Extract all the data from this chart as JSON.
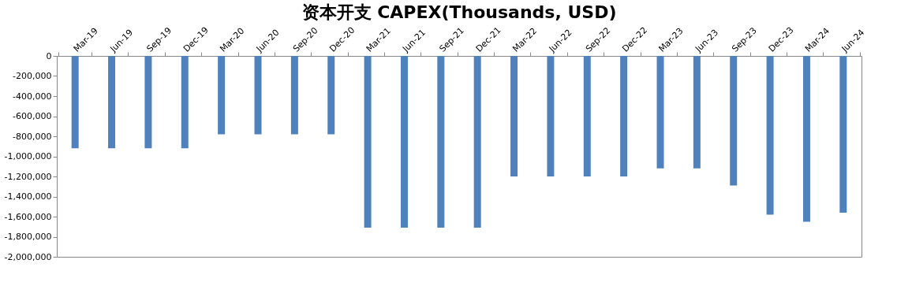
{
  "chart_data": {
    "type": "bar",
    "title": "资本开支 CAPEX(Thousands, USD)",
    "categories": [
      "Mar-19",
      "Jun-19",
      "Sep-19",
      "Dec-19",
      "Mar-20",
      "Jun-20",
      "Sep-20",
      "Dec-20",
      "Mar-21",
      "Jun-21",
      "Sep-21",
      "Dec-21",
      "Mar-22",
      "Jun-22",
      "Sep-22",
      "Dec-22",
      "Mar-23",
      "Jun-23",
      "Sep-23",
      "Dec-23",
      "Mar-24",
      "Jun-24"
    ],
    "values": [
      -920000,
      -920000,
      -920000,
      -920000,
      -780000,
      -780000,
      -780000,
      -780000,
      -1710000,
      -1710000,
      -1710000,
      -1710000,
      -1200000,
      -1200000,
      -1200000,
      -1200000,
      -1120000,
      -1120000,
      -1290000,
      -1580000,
      -1650000,
      -1560000
    ],
    "color": "#4f81bd",
    "ylim": [
      -2000000,
      0
    ],
    "yticks": [
      0,
      {
        "value": -200000,
        "label": "-200,000"
      },
      {
        "value": -400000,
        "label": "-400,000"
      },
      {
        "value": -600000,
        "label": "-600,000"
      },
      {
        "value": -800000,
        "label": "-800,000"
      },
      {
        "value": -1000000,
        "label": "-1,000,000"
      },
      {
        "value": -1200000,
        "label": "-1,200,000"
      },
      {
        "value": -1400000,
        "label": "-1,400,000"
      },
      {
        "value": -1600000,
        "label": "-1,600,000"
      },
      {
        "value": -1800000,
        "label": "-1,800,000"
      },
      {
        "value": -2000000,
        "label": "-2,000,000"
      }
    ],
    "grid": false
  }
}
